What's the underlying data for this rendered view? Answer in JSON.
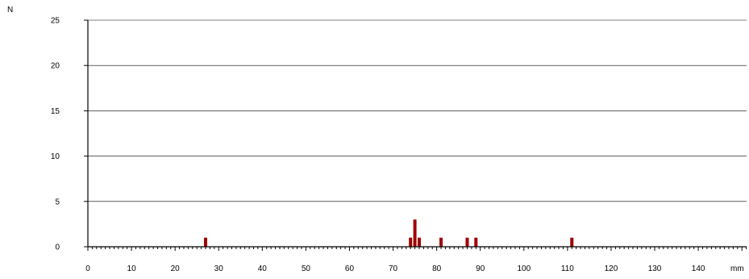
{
  "chart_data": {
    "type": "bar",
    "ylabel": "N",
    "xlabel": "mm",
    "xlim": [
      0,
      151
    ],
    "ylim": [
      0,
      25
    ],
    "x_ticks": [
      0,
      10,
      20,
      30,
      40,
      50,
      60,
      70,
      80,
      90,
      100,
      110,
      120,
      130,
      140
    ],
    "y_ticks": [
      0,
      5,
      10,
      15,
      20,
      25
    ],
    "grid": "horizontal",
    "series": [
      {
        "color": "#a00000",
        "points": [
          {
            "x": 27,
            "y": 1
          },
          {
            "x": 74,
            "y": 1
          },
          {
            "x": 75,
            "y": 3
          },
          {
            "x": 76,
            "y": 1
          },
          {
            "x": 81,
            "y": 1
          },
          {
            "x": 87,
            "y": 1
          },
          {
            "x": 89,
            "y": 1
          },
          {
            "x": 111,
            "y": 1
          }
        ]
      }
    ]
  }
}
